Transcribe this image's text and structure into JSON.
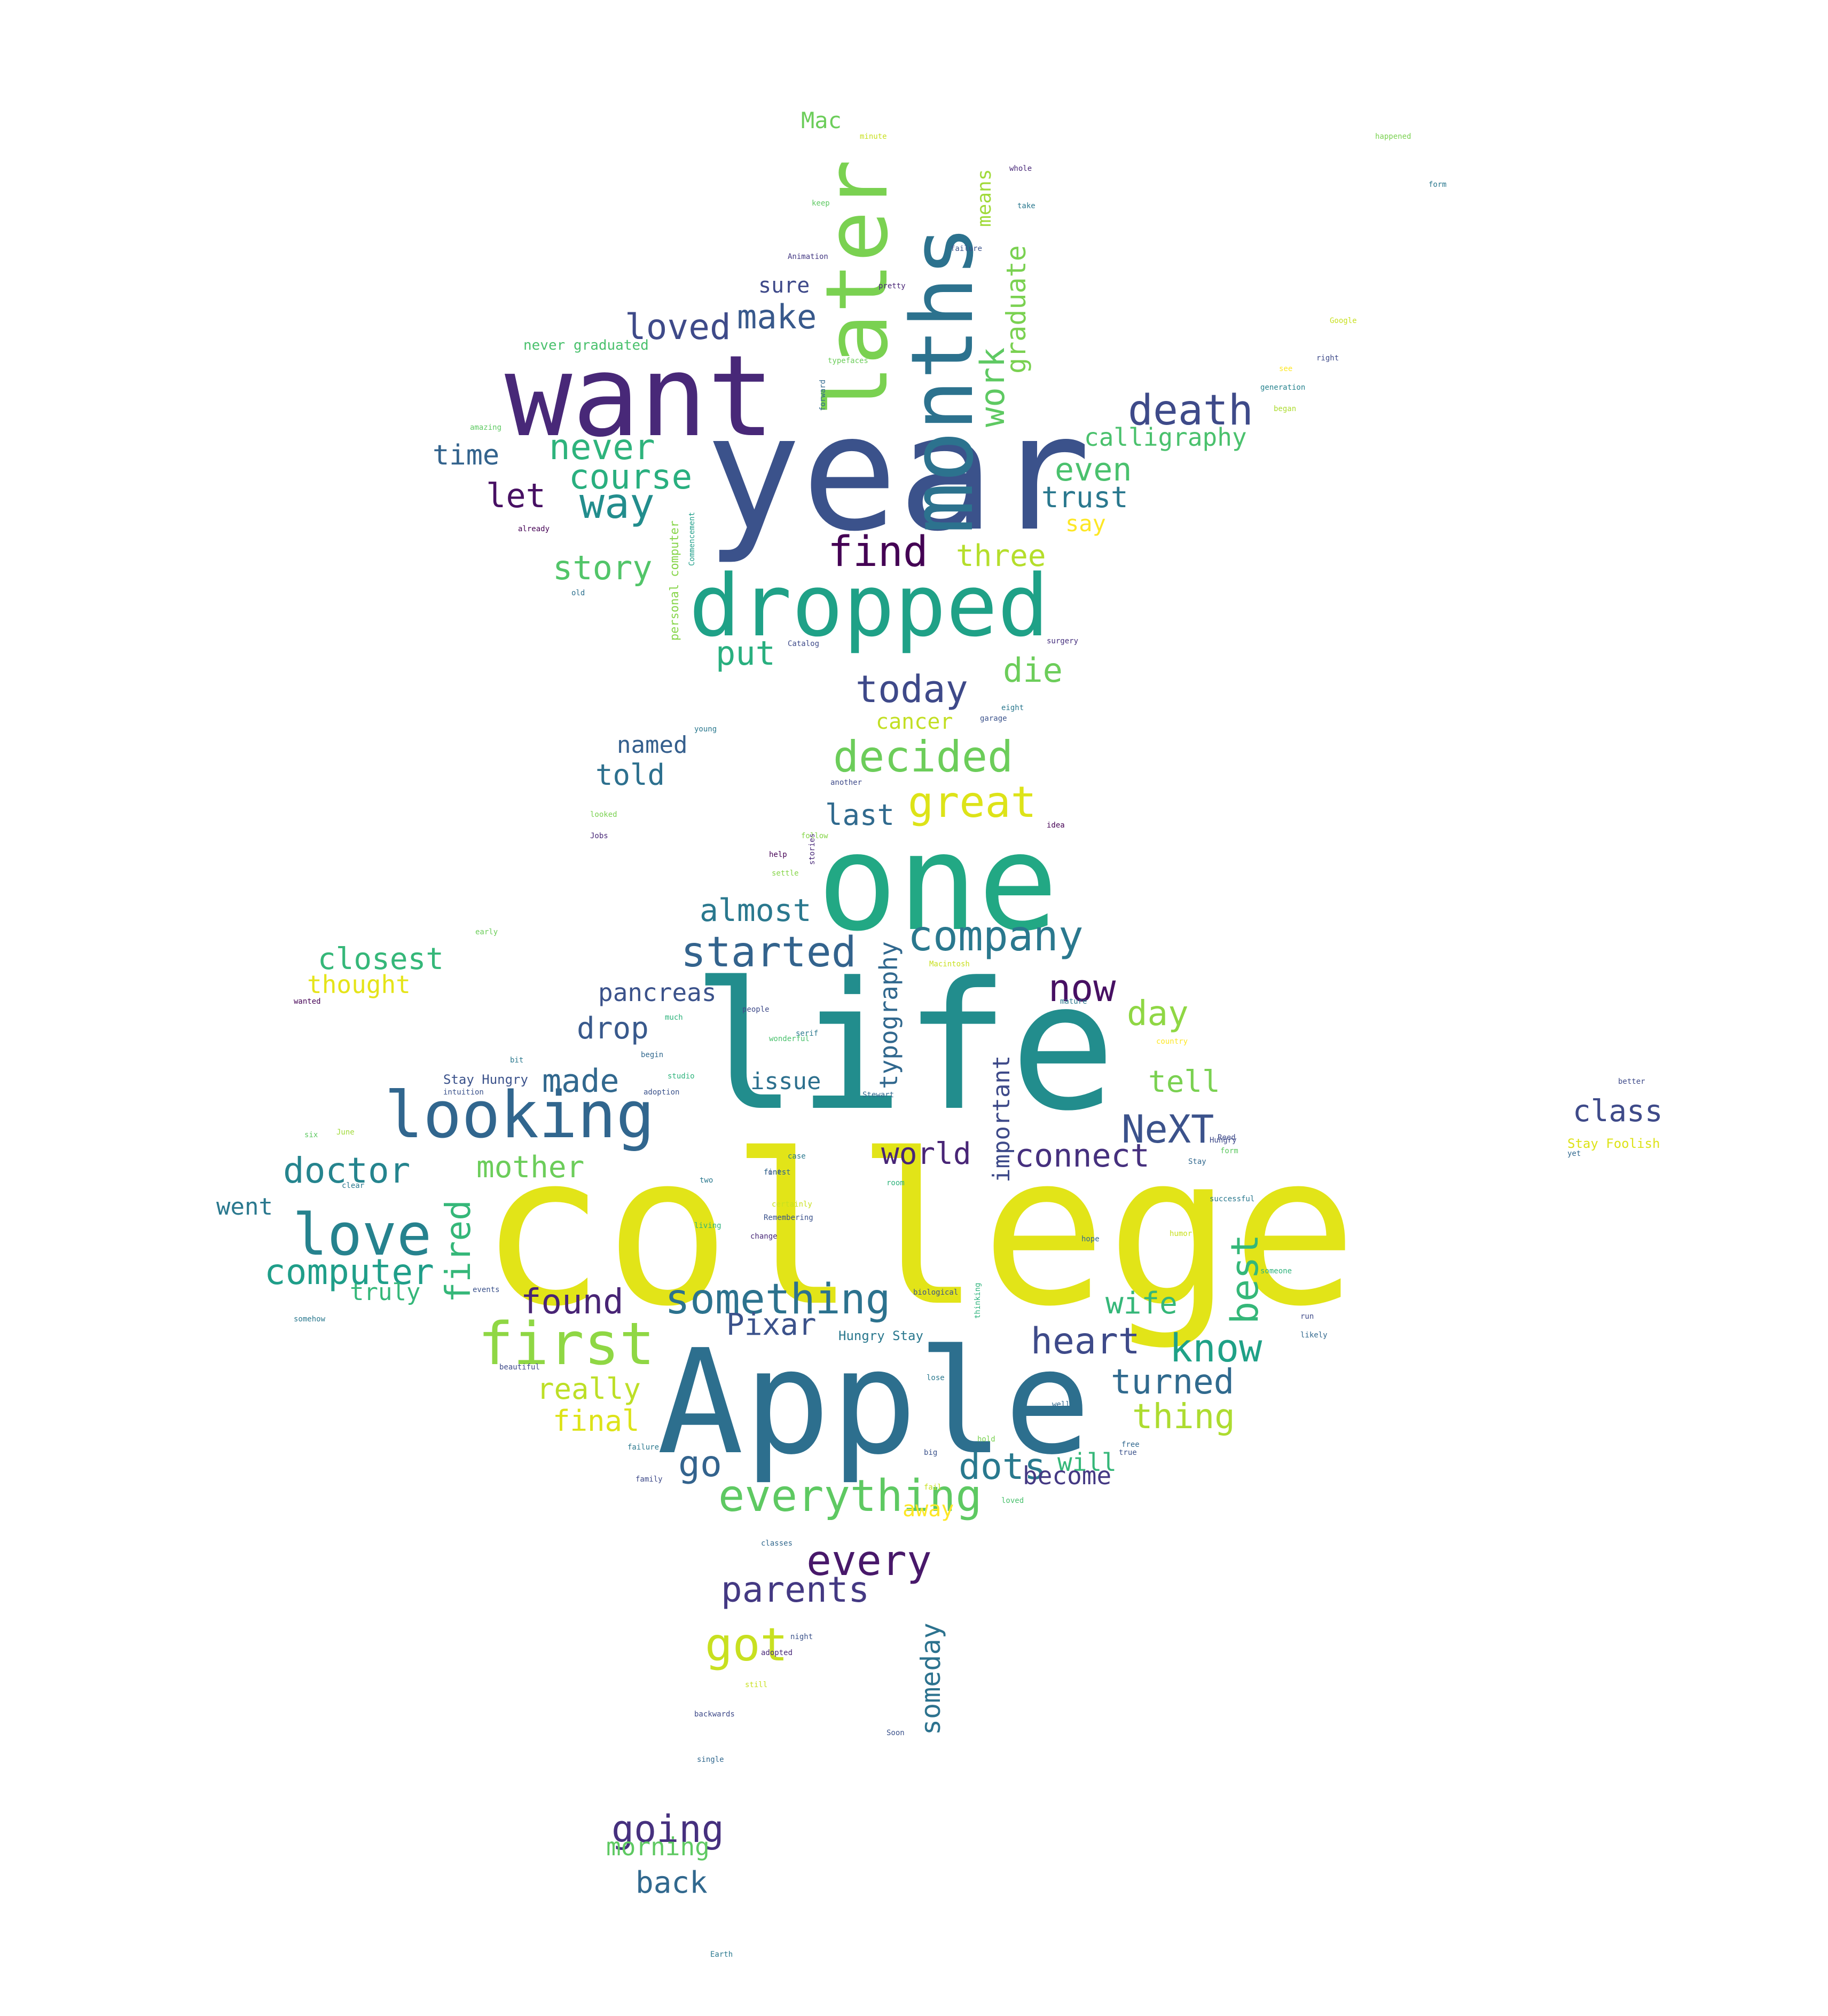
{
  "words": [
    {
      "text": "college",
      "color": "#e2e418"
    },
    {
      "text": "life",
      "color": "#228d8d"
    },
    {
      "text": "Apple",
      "color": "#2d6f8e"
    },
    {
      "text": "year",
      "color": "#3b528b"
    },
    {
      "text": "one",
      "color": "#22a884"
    },
    {
      "text": "want",
      "color": "#482878"
    },
    {
      "text": "months",
      "color": "#2c728e"
    },
    {
      "text": "later",
      "color": "#7ad151"
    },
    {
      "text": "dropped",
      "color": "#1fa187"
    },
    {
      "text": "looking",
      "color": "#31668e"
    },
    {
      "text": "first",
      "color": "#8fd744"
    },
    {
      "text": "love",
      "color": "#26828e"
    },
    {
      "text": "great",
      "color": "#dde318"
    },
    {
      "text": "company",
      "color": "#2a788e"
    },
    {
      "text": "death",
      "color": "#3e4a89"
    },
    {
      "text": "decided",
      "color": "#6ccd5a"
    },
    {
      "text": "started",
      "color": "#33638d"
    },
    {
      "text": "everything",
      "color": "#5ec962"
    },
    {
      "text": "NeXT",
      "color": "#3b528b"
    },
    {
      "text": "something",
      "color": "#2c728e"
    },
    {
      "text": "find",
      "color": "#440154"
    },
    {
      "text": "know",
      "color": "#1fa187"
    },
    {
      "text": "heart",
      "color": "#3e4a89"
    },
    {
      "text": "dots",
      "color": "#29798e"
    },
    {
      "text": "best",
      "color": "#35b779"
    },
    {
      "text": "computer",
      "color": "#1f9e89"
    },
    {
      "text": "doctor",
      "color": "#25848e"
    },
    {
      "text": "got",
      "color": "#c8e020"
    },
    {
      "text": "going",
      "color": "#46307e"
    },
    {
      "text": "now",
      "color": "#471063"
    },
    {
      "text": "every",
      "color": "#48186a"
    },
    {
      "text": "parents",
      "color": "#443983"
    },
    {
      "text": "way",
      "color": "#228d8d"
    },
    {
      "text": "today",
      "color": "#3e4989"
    },
    {
      "text": "die",
      "color": "#6ccd5a"
    },
    {
      "text": "loved",
      "color": "#3e4a89"
    },
    {
      "text": "make",
      "color": "#38598c"
    },
    {
      "text": "work",
      "color": "#5ec962"
    },
    {
      "text": "never",
      "color": "#2eb37c"
    },
    {
      "text": "course",
      "color": "#29af7f"
    },
    {
      "text": "story",
      "color": "#52c569"
    },
    {
      "text": "found",
      "color": "#482475"
    },
    {
      "text": "fired",
      "color": "#35b779"
    },
    {
      "text": "turned",
      "color": "#306a8e"
    },
    {
      "text": "thing",
      "color": "#addc30"
    },
    {
      "text": "day",
      "color": "#8fd744"
    },
    {
      "text": "connect",
      "color": "#46307e"
    },
    {
      "text": "made",
      "color": "#31688e"
    },
    {
      "text": "wife",
      "color": "#35b779"
    },
    {
      "text": "tell",
      "color": "#7ad151"
    },
    {
      "text": "world",
      "color": "#482576"
    },
    {
      "text": "go",
      "color": "#33638d"
    },
    {
      "text": "closest",
      "color": "#35b779"
    },
    {
      "text": "mother",
      "color": "#6ccd5a"
    },
    {
      "text": "Pixar",
      "color": "#3b528b"
    },
    {
      "text": "almost",
      "color": "#2a788e"
    },
    {
      "text": "three",
      "color": "#b5de2b"
    },
    {
      "text": "even",
      "color": "#4ac16d"
    },
    {
      "text": "let",
      "color": "#471063"
    },
    {
      "text": "put",
      "color": "#29af7f"
    },
    {
      "text": "calligraphy",
      "color": "#4ac16d"
    },
    {
      "text": "trust",
      "color": "#2a788e"
    },
    {
      "text": "graduate",
      "color": "#7ad151"
    },
    {
      "text": "time",
      "color": "#33638d"
    },
    {
      "text": "last",
      "color": "#306a8e"
    },
    {
      "text": "told",
      "color": "#2d708e"
    },
    {
      "text": "named",
      "color": "#355f8d"
    },
    {
      "text": "drop",
      "color": "#38598c"
    },
    {
      "text": "pancreas",
      "color": "#3b528b"
    },
    {
      "text": "issue",
      "color": "#2d708e"
    },
    {
      "text": "typography",
      "color": "#31688e"
    },
    {
      "text": "important",
      "color": "#3e4a89"
    },
    {
      "text": "really",
      "color": "#bddf26"
    },
    {
      "text": "final",
      "color": "#dde318"
    },
    {
      "text": "will",
      "color": "#35b779"
    },
    {
      "text": "become",
      "color": "#443983"
    },
    {
      "text": "someday",
      "color": "#2c728e"
    },
    {
      "text": "away",
      "color": "#fde725"
    },
    {
      "text": "morning",
      "color": "#5ec962"
    },
    {
      "text": "back",
      "color": "#31688e"
    },
    {
      "text": "went",
      "color": "#2a788e"
    },
    {
      "text": "truly",
      "color": "#35b779"
    },
    {
      "text": "thought",
      "color": "#e5e419"
    },
    {
      "text": "class",
      "color": "#3e4a89"
    },
    {
      "text": "sure",
      "color": "#3e4989"
    },
    {
      "text": "say",
      "color": "#fde725"
    },
    {
      "text": "cancer",
      "color": "#c2df23"
    },
    {
      "text": "Mac",
      "color": "#6ccd5a"
    },
    {
      "text": "means",
      "color": "#a0da39"
    },
    {
      "text": "never graduated",
      "color": "#4ac16d"
    },
    {
      "text": "personal computer",
      "color": "#86d549"
    },
    {
      "text": "Stay Hungry",
      "color": "#3b528b"
    },
    {
      "text": "Hungry Stay",
      "color": "#2a788e"
    },
    {
      "text": "Stay Foolish",
      "color": "#dde318"
    },
    {
      "text": "happened",
      "color": "#7ad151"
    },
    {
      "text": "form",
      "color": "#2a788e"
    },
    {
      "text": "Google",
      "color": "#c8e020"
    },
    {
      "text": "right",
      "color": "#3e4a89"
    },
    {
      "text": "see",
      "color": "#fde725"
    },
    {
      "text": "generation",
      "color": "#26828e"
    },
    {
      "text": "began",
      "color": "#addc30"
    },
    {
      "text": "amazing",
      "color": "#5ec962"
    },
    {
      "text": "already",
      "color": "#440154"
    },
    {
      "text": "old",
      "color": "#2d708e"
    },
    {
      "text": "whole",
      "color": "#482878"
    },
    {
      "text": "take",
      "color": "#2a788e"
    },
    {
      "text": "failure",
      "color": "#3b528b"
    },
    {
      "text": "Animation",
      "color": "#443983"
    },
    {
      "text": "pretty",
      "color": "#482475"
    },
    {
      "text": "keep",
      "color": "#5ec962"
    },
    {
      "text": "minute",
      "color": "#c8e020"
    },
    {
      "text": "typefaces",
      "color": "#6ccd5a"
    },
    {
      "text": "forward",
      "color": "#31688e"
    },
    {
      "text": "Commencement",
      "color": "#1f9e89"
    },
    {
      "text": "Catalog",
      "color": "#3e4a89"
    },
    {
      "text": "surgery",
      "color": "#46307e"
    },
    {
      "text": "eight",
      "color": "#2a788e"
    },
    {
      "text": "garage",
      "color": "#3b528b"
    },
    {
      "text": "young",
      "color": "#2a788e"
    },
    {
      "text": "another",
      "color": "#3e4a89"
    },
    {
      "text": "looked",
      "color": "#7ad151"
    },
    {
      "text": "Jobs",
      "color": "#482878"
    },
    {
      "text": "follow",
      "color": "#86d549"
    },
    {
      "text": "idea",
      "color": "#440154"
    },
    {
      "text": "help",
      "color": "#440154"
    },
    {
      "text": "settle",
      "color": "#86d549"
    },
    {
      "text": "stories",
      "color": "#482878"
    },
    {
      "text": "early",
      "color": "#6ccd5a"
    },
    {
      "text": "wanted",
      "color": "#440154"
    },
    {
      "text": "people",
      "color": "#3e4a89"
    },
    {
      "text": "much",
      "color": "#2eb37c"
    },
    {
      "text": "serif",
      "color": "#2a788e"
    },
    {
      "text": "wonderful",
      "color": "#4ac16d"
    },
    {
      "text": "begin",
      "color": "#31688e"
    },
    {
      "text": "studio",
      "color": "#2eb37c"
    },
    {
      "text": "adoption",
      "color": "#3b528b"
    },
    {
      "text": "Stewart",
      "color": "#31688e"
    },
    {
      "text": "intuition",
      "color": "#3b528b"
    },
    {
      "text": "Macintosh",
      "color": "#c8e020"
    },
    {
      "text": "mature",
      "color": "#2a788e"
    },
    {
      "text": "country",
      "color": "#fde725"
    },
    {
      "text": "case",
      "color": "#2a788e"
    },
    {
      "text": "fonts",
      "color": "#3e4a89"
    },
    {
      "text": "six",
      "color": "#5ec962"
    },
    {
      "text": "bit",
      "color": "#2a788e"
    },
    {
      "text": "June",
      "color": "#a0da39"
    },
    {
      "text": "finest",
      "color": "#31688e"
    },
    {
      "text": "clear",
      "color": "#2a788e"
    },
    {
      "text": "room",
      "color": "#2eb37c"
    },
    {
      "text": "two",
      "color": "#2a788e"
    },
    {
      "text": "certainly",
      "color": "#c8e020"
    },
    {
      "text": "Remembering",
      "color": "#3b528b"
    },
    {
      "text": "living",
      "color": "#2eb37c"
    },
    {
      "text": "change",
      "color": "#482878"
    },
    {
      "text": "biological",
      "color": "#3b528b"
    },
    {
      "text": "Hungry",
      "color": "#3e4a89"
    },
    {
      "text": "Stay",
      "color": "#31688e"
    },
    {
      "text": "somehow",
      "color": "#2a788e"
    },
    {
      "text": "events",
      "color": "#3b528b"
    },
    {
      "text": "beautiful",
      "color": "#3e4a89"
    },
    {
      "text": "lose",
      "color": "#2a788e"
    },
    {
      "text": "well",
      "color": "#31688e"
    },
    {
      "text": "big",
      "color": "#3b528b"
    },
    {
      "text": "true",
      "color": "#3b528b"
    },
    {
      "text": "loved",
      "color": "#4ac16d"
    },
    {
      "text": "failure",
      "color": "#2a788e"
    },
    {
      "text": "family",
      "color": "#3e4a89"
    },
    {
      "text": "classes",
      "color": "#31688e"
    },
    {
      "text": "night",
      "color": "#3b528b"
    },
    {
      "text": "adopted",
      "color": "#482878"
    },
    {
      "text": "still",
      "color": "#c8e020"
    },
    {
      "text": "backwards",
      "color": "#3e4a89"
    },
    {
      "text": "Soon",
      "color": "#3b528b"
    },
    {
      "text": "single",
      "color": "#31688e"
    },
    {
      "text": "Earth",
      "color": "#2a788e"
    },
    {
      "text": "better",
      "color": "#3e4a89"
    },
    {
      "text": "yet",
      "color": "#31688e"
    },
    {
      "text": "Reed",
      "color": "#3e4a89"
    },
    {
      "text": "form",
      "color": "#5ec962"
    },
    {
      "text": "successful",
      "color": "#2a788e"
    },
    {
      "text": "hope",
      "color": "#31688e"
    },
    {
      "text": "humor",
      "color": "#c8e020"
    },
    {
      "text": "someone",
      "color": "#2eb37c"
    },
    {
      "text": "run",
      "color": "#3e4a89"
    },
    {
      "text": "likely",
      "color": "#31688e"
    },
    {
      "text": "thinking",
      "color": "#2eb37c"
    },
    {
      "text": "free",
      "color": "#31688e"
    },
    {
      "text": "hold",
      "color": "#7ad151"
    },
    {
      "text": "fail",
      "color": "#c8e020"
    }
  ]
}
